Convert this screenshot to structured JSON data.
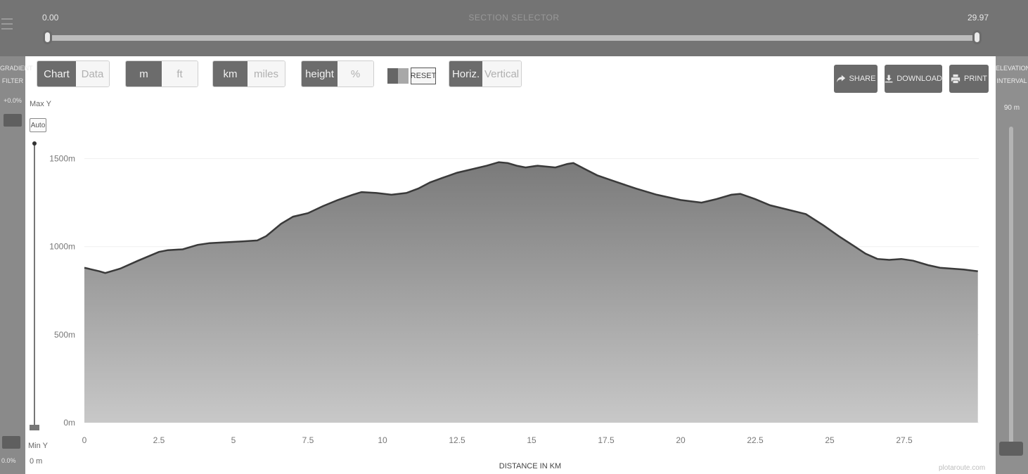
{
  "section_selector": {
    "title": "SECTION SELECTOR",
    "min_value": "0.00",
    "max_value": "29.97"
  },
  "gradient_filter": {
    "title": "GRADIENT FILTER",
    "value": "+0.0%",
    "bottom_value": "0.0%"
  },
  "elevation_interval": {
    "title": "ELEVATION INTERVAL",
    "value": "90 m"
  },
  "toolbar": {
    "view": {
      "options": [
        "Chart",
        "Data"
      ],
      "selected": "Chart"
    },
    "units": {
      "options": [
        "m",
        "ft"
      ],
      "selected": "m"
    },
    "distance": {
      "options": [
        "km",
        "miles"
      ],
      "selected": "km"
    },
    "mode": {
      "options": [
        "height",
        "%"
      ],
      "selected": "height"
    },
    "reset_label": "RESET",
    "orientation": {
      "options": [
        "Horiz.",
        "Vertical"
      ],
      "selected": "Horiz."
    },
    "share_label": "SHARE",
    "download_label": "DOWNLOAD",
    "print_label": "PRINT"
  },
  "y_controls": {
    "max_label": "Max Y",
    "auto_label": "Auto",
    "min_label": "Min Y",
    "min_value": "0 m"
  },
  "watermark": "plotaroute.com",
  "colors": {
    "panel_dark": "#747474",
    "button_active": "#6c6c6c",
    "profile_fill_top": "#7a7a7a",
    "profile_fill_bottom": "#c8c8c8",
    "profile_line": "#3a3a3a"
  },
  "chart_data": {
    "type": "area",
    "xlabel": "DISTANCE IN KM",
    "ylabel": "",
    "xlim": [
      0,
      30
    ],
    "ylim": [
      0,
      1650
    ],
    "x_ticks": [
      0,
      2.5,
      5,
      7.5,
      10,
      12.5,
      15,
      17.5,
      20,
      22.5,
      25,
      27.5
    ],
    "x_tick_labels": [
      "0",
      "2.5",
      "5",
      "7.5",
      "10",
      "12.5",
      "15",
      "17.5",
      "20",
      "22.5",
      "25",
      "27.5"
    ],
    "y_ticks": [
      0,
      500,
      1000,
      1500
    ],
    "y_tick_labels": [
      "0m",
      "500m",
      "1000m",
      "1500m"
    ],
    "grid": false,
    "series": [
      {
        "x": [
          0,
          0.5,
          0.7,
          1.2,
          1.8,
          2.5,
          2.8,
          3.3,
          3.8,
          4.2,
          4.8,
          5.3,
          5.8,
          6.1,
          6.6,
          7.0,
          7.5,
          8.0,
          8.5,
          9.0,
          9.3,
          9.8,
          10.3,
          10.8,
          11.2,
          11.6,
          12.0,
          12.5,
          13.0,
          13.5,
          13.9,
          14.2,
          14.5,
          14.8,
          15.2,
          15.8,
          16.2,
          16.4,
          16.8,
          17.2,
          17.8,
          18.5,
          19.2,
          20.0,
          20.7,
          21.2,
          21.7,
          22.0,
          22.5,
          23.0,
          23.6,
          24.2,
          24.8,
          25.3,
          25.8,
          26.2,
          26.6,
          27.0,
          27.4,
          27.8,
          28.3,
          28.7,
          29.1,
          29.5,
          29.97
        ],
        "y": [
          880,
          860,
          850,
          875,
          920,
          970,
          980,
          985,
          1010,
          1020,
          1025,
          1030,
          1035,
          1060,
          1130,
          1170,
          1190,
          1230,
          1265,
          1295,
          1310,
          1305,
          1295,
          1305,
          1330,
          1365,
          1390,
          1420,
          1440,
          1460,
          1480,
          1475,
          1460,
          1450,
          1460,
          1450,
          1470,
          1475,
          1440,
          1405,
          1370,
          1330,
          1295,
          1265,
          1250,
          1270,
          1295,
          1300,
          1270,
          1235,
          1210,
          1185,
          1120,
          1060,
          1005,
          960,
          930,
          925,
          930,
          920,
          895,
          880,
          875,
          870,
          860
        ]
      }
    ]
  }
}
